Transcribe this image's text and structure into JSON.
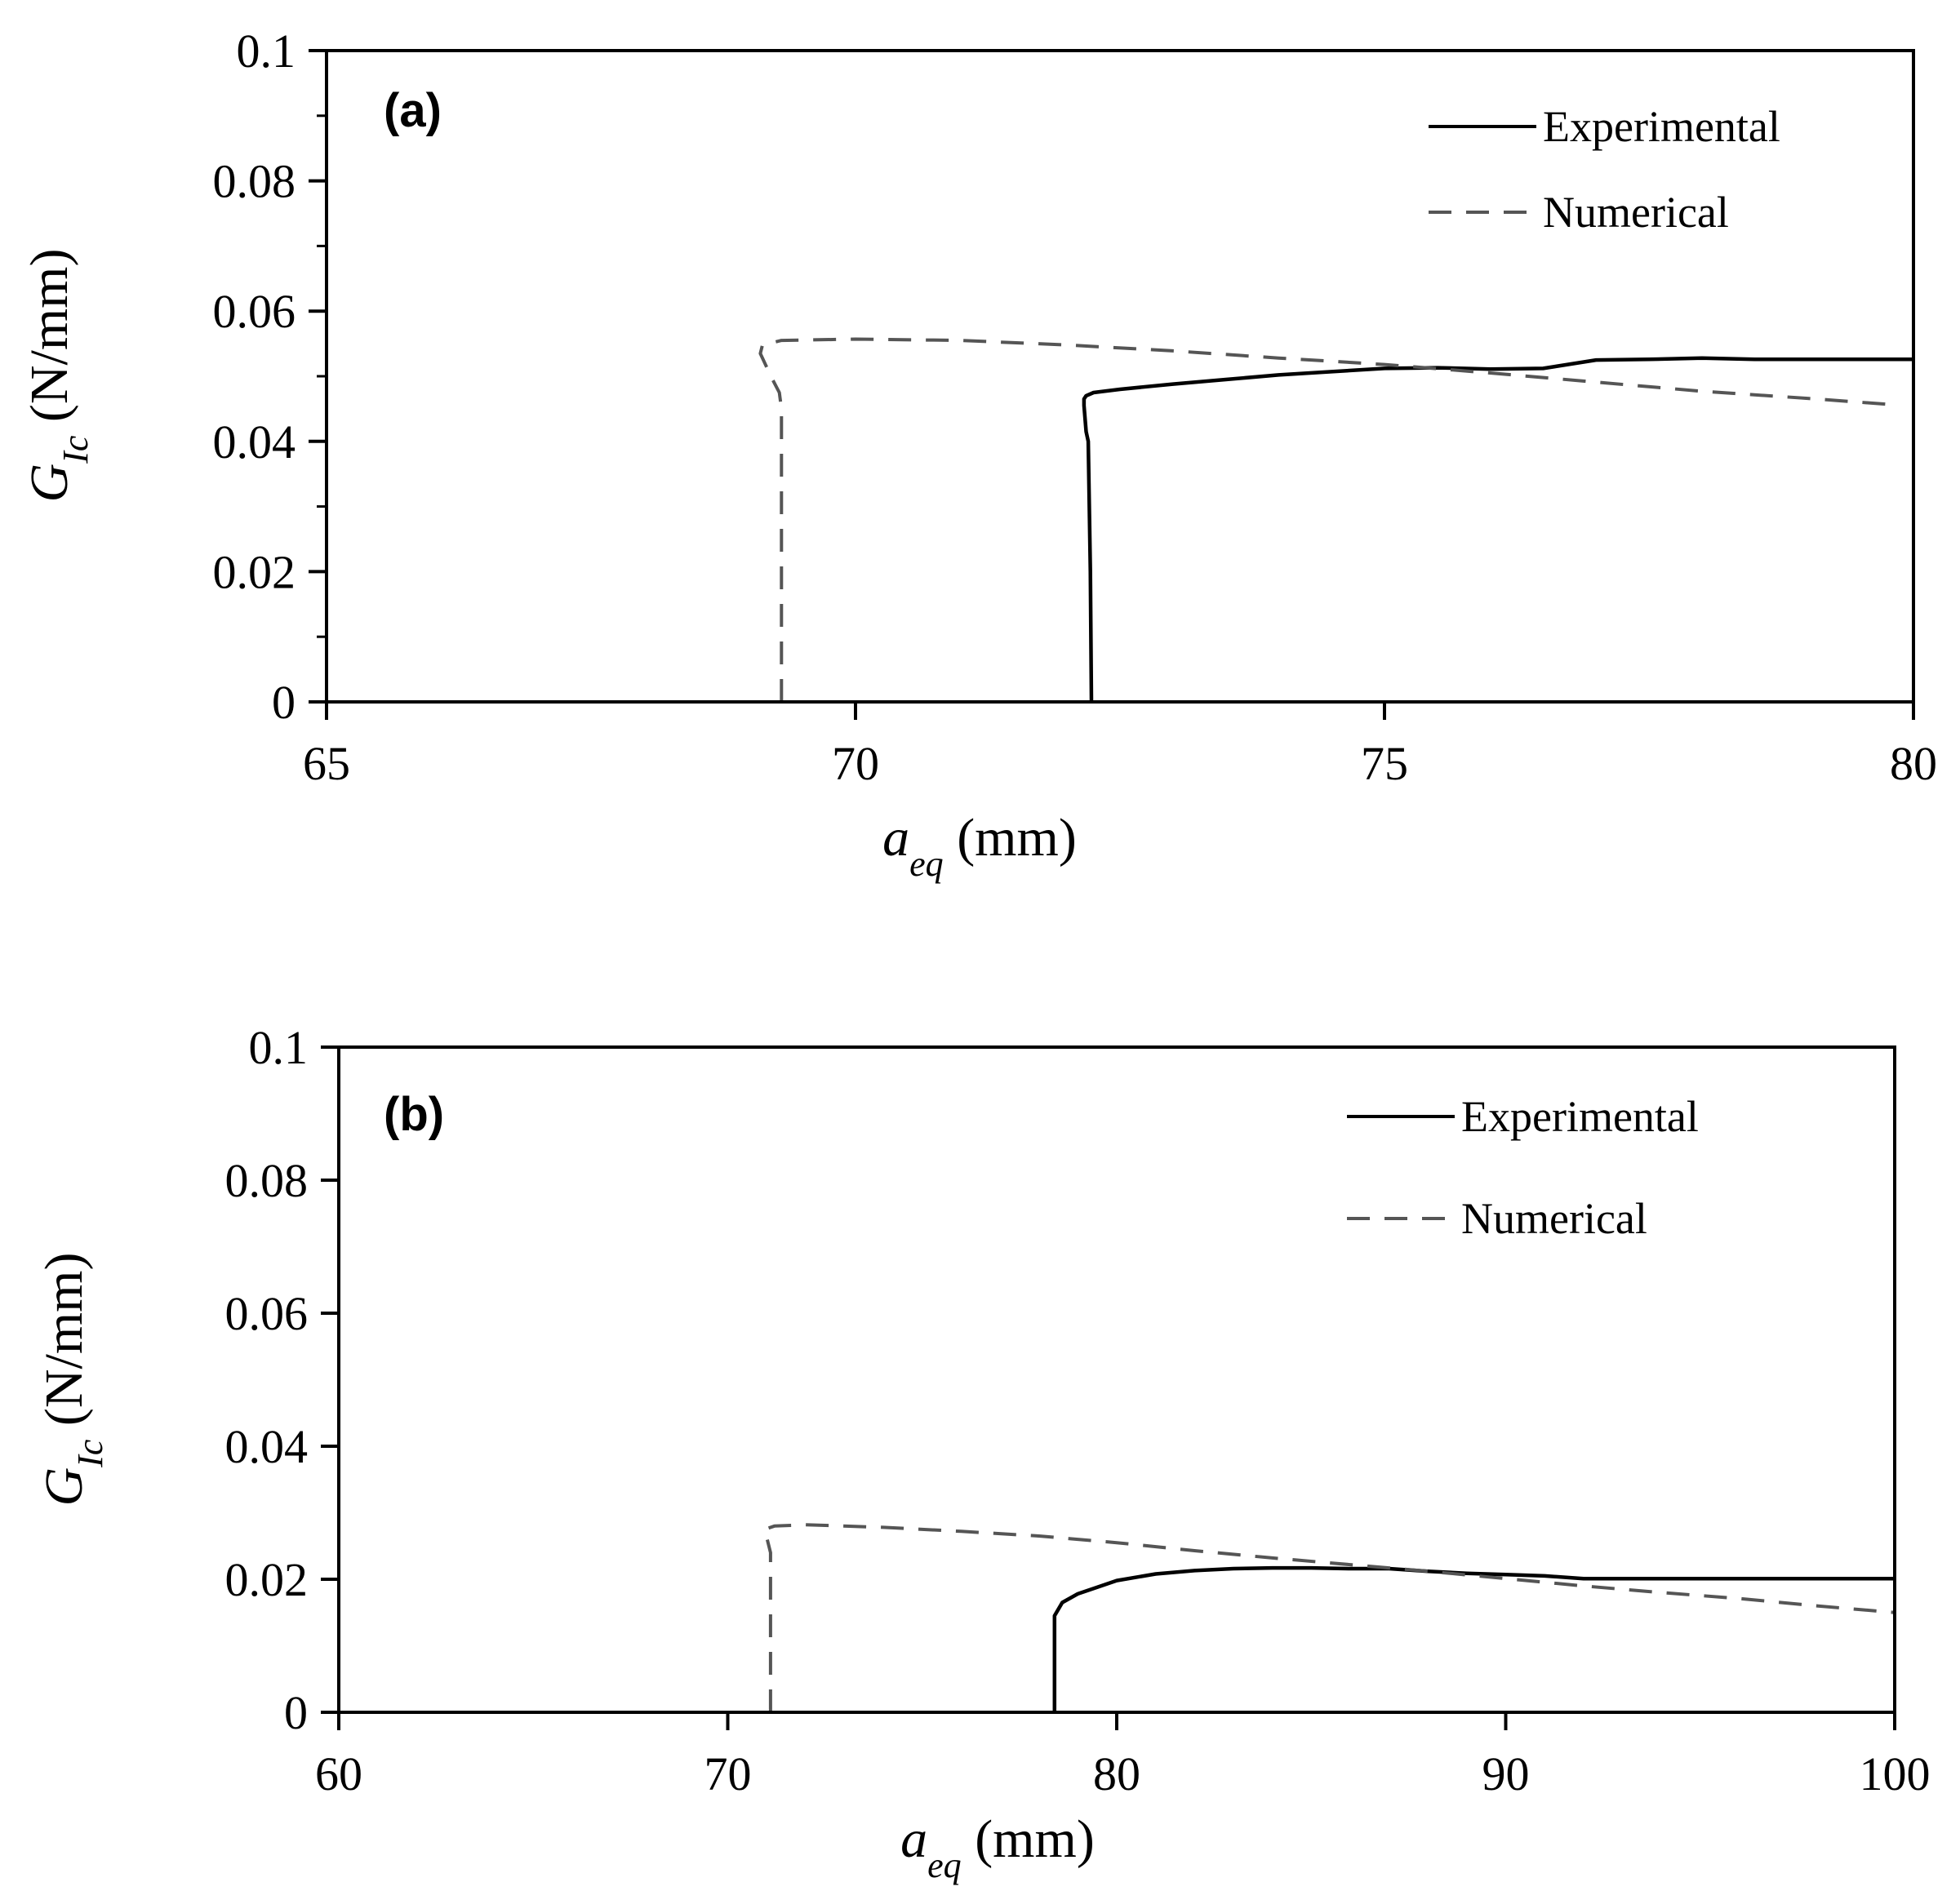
{
  "chart_data": [
    {
      "type": "line",
      "panel_label": "(a)",
      "xlabel_main": "a",
      "xlabel_sub": "eq",
      "xlabel_unit": " (mm)",
      "ylabel_main": "G",
      "ylabel_sub": "Ic",
      "ylabel_unit": " (N/mm)",
      "xlim": [
        65,
        80
      ],
      "ylim": [
        0,
        0.1
      ],
      "xticks": [
        65,
        70,
        75,
        80
      ],
      "xtick_labels": [
        "65",
        "70",
        "75",
        "80"
      ],
      "yticks": [
        0,
        0.02,
        0.04,
        0.06,
        0.08,
        0.1
      ],
      "ytick_labels": [
        "0",
        "0.02",
        "0.04",
        "0.06",
        "0.08",
        "0.1"
      ],
      "legend_position": "top-right",
      "series": [
        {
          "name": "Experimental",
          "style": "solid",
          "x": [
            72.23,
            72.22,
            72.2,
            72.18,
            72.17,
            72.16,
            72.16,
            72.18,
            72.25,
            72.5,
            73.0,
            73.5,
            74.0,
            74.5,
            75.0,
            75.5,
            76.0,
            76.5,
            77.0,
            77.5,
            78.0,
            78.5,
            79.0,
            79.5,
            80.0
          ],
          "y": [
            0.0,
            0.02,
            0.04,
            0.0415,
            0.0435,
            0.0455,
            0.0465,
            0.047,
            0.0475,
            0.048,
            0.0488,
            0.0495,
            0.0502,
            0.0507,
            0.0512,
            0.0513,
            0.0511,
            0.0512,
            0.0525,
            0.0526,
            0.0528,
            0.0526,
            0.0526,
            0.0526,
            0.0526
          ]
        },
        {
          "name": "Numerical",
          "style": "dashed",
          "x": [
            69.3,
            69.3,
            69.28,
            69.2,
            69.1,
            69.12,
            69.3,
            70.0,
            71.0,
            72.0,
            73.0,
            74.0,
            75.0,
            76.0,
            77.0,
            78.0,
            79.0,
            79.75
          ],
          "y": [
            0.0,
            0.045,
            0.0475,
            0.05,
            0.0535,
            0.0548,
            0.0555,
            0.0557,
            0.0555,
            0.0548,
            0.0539,
            0.0528,
            0.0518,
            0.0505,
            0.0491,
            0.0477,
            0.0466,
            0.0457
          ]
        }
      ]
    },
    {
      "type": "line",
      "panel_label": "(b)",
      "xlabel_main": "a",
      "xlabel_sub": "eq",
      "xlabel_unit": " (mm)",
      "ylabel_main": "G",
      "ylabel_sub": "Ic",
      "ylabel_unit": " (N/mm)",
      "xlim": [
        60,
        100
      ],
      "ylim": [
        0,
        0.1
      ],
      "xticks": [
        60,
        70,
        80,
        90,
        100
      ],
      "xtick_labels": [
        "60",
        "70",
        "80",
        "90",
        "100"
      ],
      "yticks": [
        0,
        0.02,
        0.04,
        0.06,
        0.08,
        0.1
      ],
      "ytick_labels": [
        "0",
        "0.02",
        "0.04",
        "0.06",
        "0.08",
        "0.1"
      ],
      "legend_position": "top-right",
      "series": [
        {
          "name": "Experimental",
          "style": "solid",
          "x": [
            78.4,
            78.4,
            78.6,
            79.0,
            79.5,
            80.0,
            81.0,
            82.0,
            83.0,
            84.0,
            85.0,
            86.0,
            87.0,
            88.0,
            89.0,
            90.0,
            91.0,
            92.0,
            94.0,
            96.0,
            98.0,
            100.0
          ],
          "y": [
            0.0,
            0.0145,
            0.0165,
            0.0178,
            0.0188,
            0.0198,
            0.0208,
            0.0213,
            0.0216,
            0.0217,
            0.0217,
            0.0216,
            0.0216,
            0.0212,
            0.0209,
            0.0207,
            0.0205,
            0.0201,
            0.0201,
            0.0201,
            0.0201,
            0.0201
          ]
        },
        {
          "name": "Numerical",
          "style": "dashed",
          "x": [
            71.1,
            71.1,
            70.95,
            71.2,
            72.0,
            74.0,
            76.0,
            78.0,
            80.0,
            82.0,
            84.0,
            86.0,
            88.0,
            90.0,
            92.0,
            94.0,
            96.0,
            98.0,
            100.0
          ],
          "y": [
            0.0,
            0.024,
            0.0275,
            0.028,
            0.0282,
            0.0278,
            0.0272,
            0.0265,
            0.0255,
            0.0243,
            0.0232,
            0.0222,
            0.0212,
            0.0201,
            0.019,
            0.018,
            0.0171,
            0.016,
            0.015
          ]
        }
      ]
    }
  ]
}
